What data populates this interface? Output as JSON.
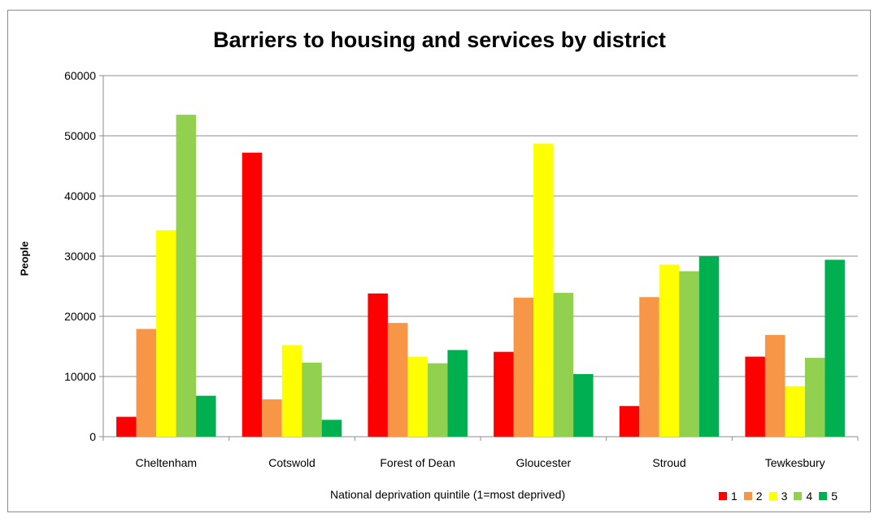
{
  "chart_data": {
    "type": "bar",
    "title": "Barriers to housing and services by district",
    "xlabel": "National deprivation quintile (1=most deprived)",
    "ylabel": "People",
    "ylim": [
      0,
      60000
    ],
    "yticks": [
      0,
      10000,
      20000,
      30000,
      40000,
      50000,
      60000
    ],
    "grid": true,
    "legend_position": "bottom-right",
    "categories": [
      "Cheltenham",
      "Cotswold",
      "Forest of Dean",
      "Gloucester",
      "Stroud",
      "Tewkesbury"
    ],
    "series": [
      {
        "name": "1",
        "color": "#ff0000",
        "values": [
          3300,
          47200,
          23800,
          14100,
          5100,
          13300
        ]
      },
      {
        "name": "2",
        "color": "#f79646",
        "values": [
          17900,
          6200,
          18900,
          23100,
          23200,
          16900
        ]
      },
      {
        "name": "3",
        "color": "#ffff00",
        "values": [
          34300,
          15200,
          13300,
          48700,
          28600,
          8400
        ]
      },
      {
        "name": "4",
        "color": "#92d050",
        "values": [
          53500,
          12300,
          12200,
          23900,
          27500,
          13100
        ]
      },
      {
        "name": "5",
        "color": "#00b050",
        "values": [
          6800,
          2800,
          14400,
          10400,
          30000,
          29400
        ]
      }
    ]
  }
}
